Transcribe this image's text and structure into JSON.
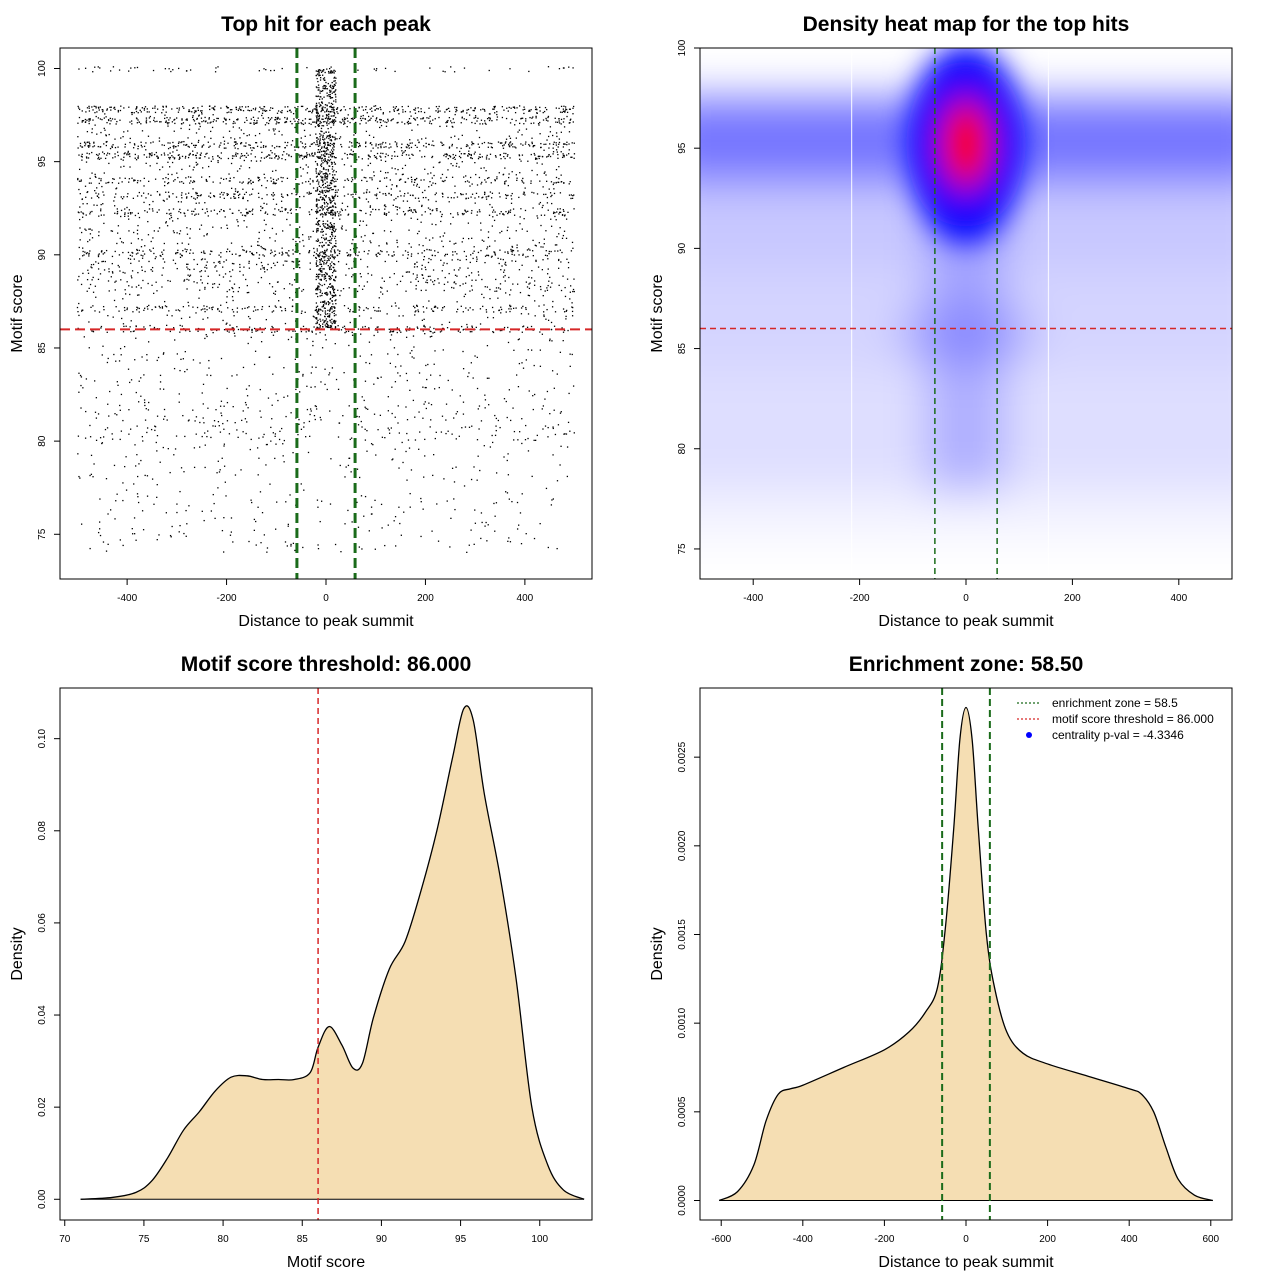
{
  "colors": {
    "threshold_line": "#d62728",
    "zone_line": "#1a6b1a",
    "density_fill": "#f5deb3",
    "point": "#000000",
    "heat_low": "#ffffff",
    "heat_mid": "#0000ff",
    "heat_high": "#ff0000"
  },
  "chart_data": [
    {
      "type": "scatter",
      "title": "Top hit for each peak",
      "xlabel": "Distance to peak summit",
      "ylabel": "Motif score",
      "xlim": [
        -535,
        535
      ],
      "ylim": [
        72.6,
        101.1
      ],
      "xticks": [
        -400,
        -200,
        0,
        200,
        400
      ],
      "yticks": [
        75,
        80,
        85,
        90,
        95,
        100
      ],
      "hlines": [
        86.0
      ],
      "vlines": [
        -58.5,
        58.5
      ],
      "point_summary": {
        "x_range": [
          -500,
          500
        ],
        "dense_score_levels": [
          100.0,
          97.8,
          97.2,
          95.9,
          95.3,
          94.0,
          93.2,
          92.3,
          90.1,
          87.1,
          86.0
        ],
        "central_enrichment_x": [
          -20,
          20
        ]
      }
    },
    {
      "type": "heatmap",
      "title": "Density heat map for the top hits",
      "xlabel": "Distance to peak summit",
      "ylabel": "Motif score",
      "xlim": [
        -500,
        500
      ],
      "ylim": [
        73.5,
        100.0
      ],
      "xticks": [
        -400,
        -200,
        0,
        200,
        400
      ],
      "yticks": [
        75,
        80,
        85,
        90,
        95,
        100
      ],
      "hlines": [
        86.0
      ],
      "vlines": [
        -58.5,
        58.5
      ],
      "density_peak": {
        "x": 0,
        "y": 95.2
      },
      "color_scale": [
        "white",
        "blue",
        "red"
      ]
    },
    {
      "type": "area",
      "title": "Motif score threshold: 86.000",
      "xlabel": "Motif score",
      "ylabel": "Density",
      "xlim": [
        69.7,
        103.3
      ],
      "ylim": [
        -0.0045,
        0.111
      ],
      "xticks": [
        70,
        75,
        80,
        85,
        90,
        95,
        100
      ],
      "yticks": [
        0.0,
        0.02,
        0.04,
        0.06,
        0.08,
        0.1
      ],
      "ytick_labels": [
        "0.00",
        "0.02",
        "0.04",
        "0.06",
        "0.08",
        "0.10"
      ],
      "vlines": [
        86.0
      ],
      "x": [
        71.0,
        73.0,
        74.5,
        75.5,
        76.5,
        77.5,
        78.5,
        79.5,
        80.5,
        81.5,
        82.5,
        83.5,
        84.5,
        85.5,
        86.0,
        86.7,
        87.5,
        88.2,
        88.8,
        89.5,
        90.5,
        91.5,
        92.5,
        93.5,
        94.5,
        95.2,
        95.8,
        96.5,
        97.5,
        98.5,
        99.5,
        100.5,
        101.5,
        102.8
      ],
      "y": [
        0.0,
        0.0004,
        0.0015,
        0.004,
        0.009,
        0.015,
        0.019,
        0.0235,
        0.0265,
        0.0268,
        0.026,
        0.026,
        0.026,
        0.0275,
        0.033,
        0.0375,
        0.0335,
        0.0285,
        0.0295,
        0.0395,
        0.05,
        0.056,
        0.067,
        0.08,
        0.096,
        0.1065,
        0.104,
        0.088,
        0.07,
        0.048,
        0.02,
        0.0075,
        0.002,
        0.0
      ]
    },
    {
      "type": "area",
      "title": "Enrichment zone: 58.50",
      "xlabel": "Distance to peak summit",
      "ylabel": "Density",
      "xlim": [
        -652,
        652
      ],
      "ylim": [
        -0.00011,
        0.00289
      ],
      "xticks": [
        -600,
        -400,
        -200,
        0,
        200,
        400,
        600
      ],
      "yticks": [
        0.0,
        0.0005,
        0.001,
        0.0015,
        0.002,
        0.0025
      ],
      "ytick_labels": [
        "0.0000",
        "0.0005",
        "0.0010",
        "0.0015",
        "0.0020",
        "0.0025"
      ],
      "vlines": [
        -58.5,
        58.5
      ],
      "x": [
        -605,
        -560,
        -520,
        -490,
        -460,
        -430,
        -400,
        -300,
        -200,
        -140,
        -100,
        -70,
        -50,
        -30,
        -15,
        0,
        15,
        30,
        50,
        70,
        100,
        140,
        200,
        300,
        400,
        430,
        460,
        490,
        520,
        560,
        605
      ],
      "y": [
        0.0,
        5e-05,
        0.0002,
        0.00045,
        0.0006,
        0.00063,
        0.00065,
        0.00075,
        0.00085,
        0.00095,
        0.00106,
        0.0012,
        0.00155,
        0.0021,
        0.0026,
        0.00278,
        0.0026,
        0.0021,
        0.0015,
        0.0012,
        0.00095,
        0.00083,
        0.00077,
        0.0007,
        0.00063,
        0.0006,
        0.0005,
        0.0003,
        0.00012,
        3e-05,
        0.0
      ],
      "legend": {
        "position": "top-right",
        "entries": [
          {
            "label": "enrichment zone = 58.5",
            "style": "dotted",
            "color": "#1a6b1a"
          },
          {
            "label": "motif score threshold = 86.000",
            "style": "dotted",
            "color": "#d62728"
          },
          {
            "label": "centrality p-val = -4.3346",
            "style": "point",
            "color": "#0000ff"
          }
        ]
      }
    }
  ]
}
